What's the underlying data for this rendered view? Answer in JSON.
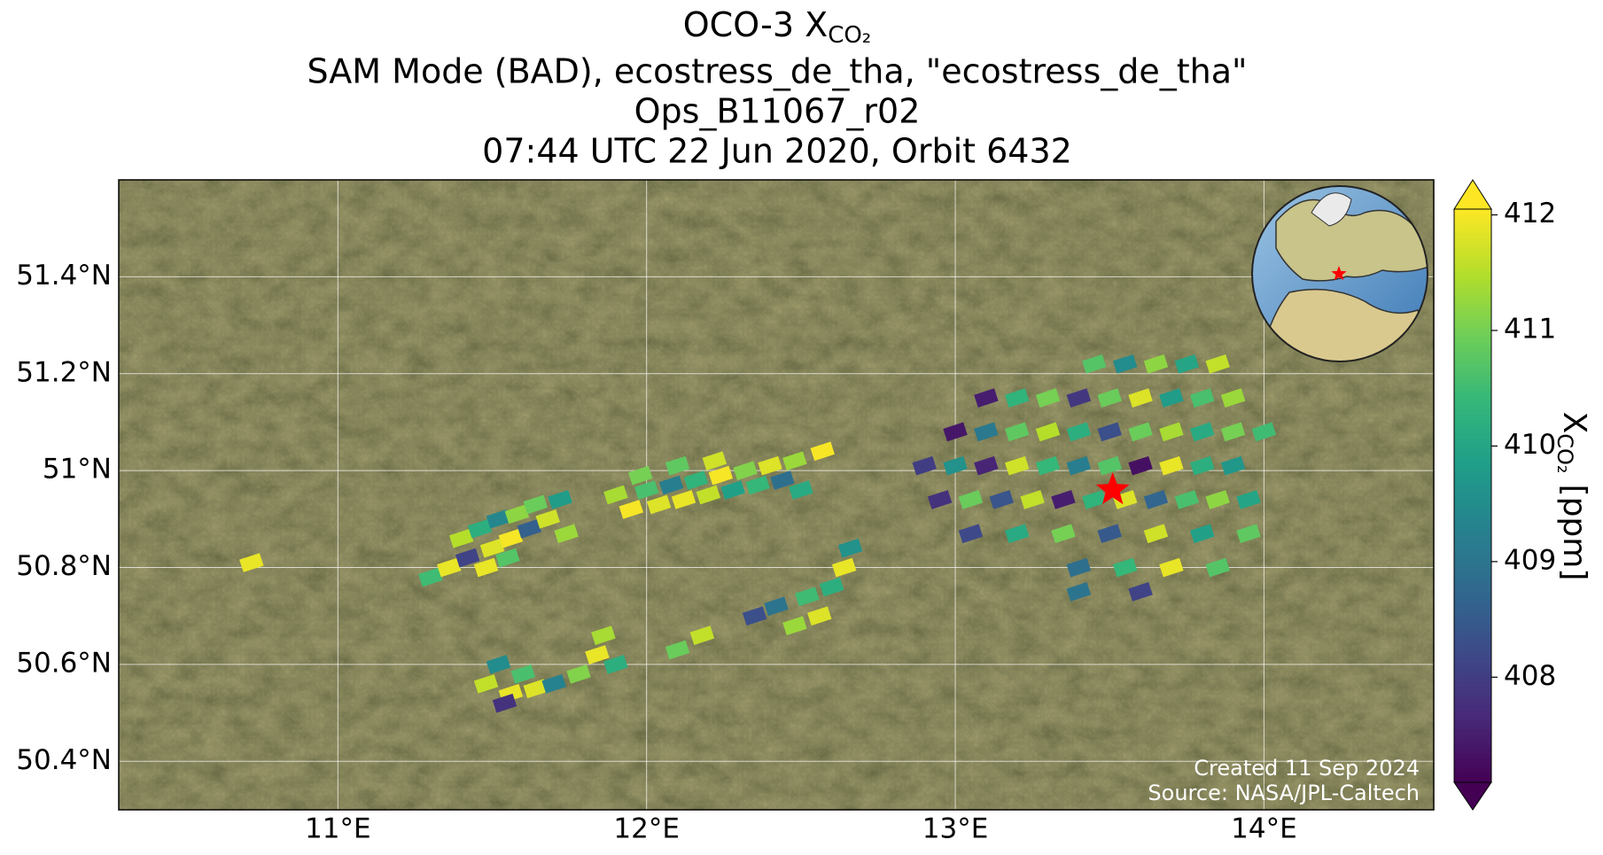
{
  "chart_data": {
    "type": "scatter",
    "title": {
      "text": "OCO-3 X",
      "subscript": "CO₂"
    },
    "subtitle": [
      "SAM Mode (BAD), ecostress_de_tha, \"ecostress_de_tha\"",
      "Ops_B11067_r02",
      "07:44 UTC 22 Jun 2020, Orbit 6432"
    ],
    "xlim": [
      10.29,
      14.55
    ],
    "ylim": [
      50.3,
      51.6
    ],
    "xticks": [
      {
        "value": 11,
        "label": "11°E"
      },
      {
        "value": 12,
        "label": "12°E"
      },
      {
        "value": 13,
        "label": "13°E"
      },
      {
        "value": 14,
        "label": "14°E"
      }
    ],
    "yticks": [
      {
        "value": 50.4,
        "label": "50.4°N"
      },
      {
        "value": 50.6,
        "label": "50.6°N"
      },
      {
        "value": 50.8,
        "label": "50.8°N"
      },
      {
        "value": 51,
        "label": "51°N"
      },
      {
        "value": 51.2,
        "label": "51.2°N"
      },
      {
        "value": 51.4,
        "label": "51.4°N"
      }
    ],
    "grid": true,
    "colormap": "viridis",
    "clim": [
      407.09,
      412.05
    ],
    "colorbar_ticks": [
      408,
      409,
      410,
      411,
      412
    ],
    "colorbar_label": {
      "text": "X",
      "subscript": "CO₂",
      "unit": "[ppm]"
    },
    "site": {
      "lon": 13.51,
      "lat": 50.96,
      "color": "#ff0000"
    },
    "series": [
      {
        "x": [
          11.3,
          11.36,
          11.42,
          11.4,
          11.46,
          11.5,
          11.52,
          11.56,
          11.58,
          11.62,
          11.64,
          11.68,
          11.72,
          11.48,
          11.55,
          11.74,
          11.9,
          11.95,
          12.0,
          12.04,
          12.08,
          12.12,
          12.16,
          12.2,
          12.24,
          12.28,
          12.32,
          12.36,
          12.4,
          12.44,
          12.48,
          11.98,
          12.1,
          12.22,
          12.5,
          12.57,
          13.45,
          13.55,
          13.65,
          13.75,
          13.85,
          13.1,
          13.2,
          13.3,
          13.4,
          13.5,
          13.6,
          13.7,
          13.8,
          13.9,
          13.0,
          13.1,
          13.2,
          13.3,
          13.4,
          13.5,
          13.6,
          13.7,
          13.8,
          13.9,
          14.0,
          12.9,
          13.0,
          13.1,
          13.2,
          13.3,
          13.4,
          13.5,
          13.6,
          13.7,
          13.8,
          13.9,
          12.95,
          13.05,
          13.15,
          13.25,
          13.35,
          13.45,
          13.55,
          13.65,
          13.75,
          13.85,
          13.95,
          13.05,
          13.2,
          13.35,
          13.5,
          13.65,
          13.8,
          13.95,
          13.4,
          13.55,
          13.7,
          13.85,
          13.4,
          13.6,
          12.35,
          12.42,
          12.48,
          12.52,
          12.56,
          12.6,
          12.64,
          12.66,
          11.48,
          11.52,
          11.56,
          11.6,
          11.64,
          11.54,
          11.7,
          11.78,
          11.84,
          11.9,
          11.86,
          12.1,
          12.18,
          10.72
        ],
        "y": [
          50.78,
          50.8,
          50.82,
          50.86,
          50.88,
          50.84,
          50.9,
          50.86,
          50.91,
          50.88,
          50.93,
          50.9,
          50.94,
          50.8,
          50.82,
          50.87,
          50.95,
          50.92,
          50.96,
          50.93,
          50.97,
          50.94,
          50.98,
          50.95,
          50.99,
          50.96,
          51.0,
          50.97,
          51.01,
          50.98,
          51.02,
          50.99,
          51.01,
          51.02,
          50.96,
          51.04,
          51.22,
          51.22,
          51.22,
          51.22,
          51.22,
          51.15,
          51.15,
          51.15,
          51.15,
          51.15,
          51.15,
          51.15,
          51.15,
          51.15,
          51.08,
          51.08,
          51.08,
          51.08,
          51.08,
          51.08,
          51.08,
          51.08,
          51.08,
          51.08,
          51.08,
          51.01,
          51.01,
          51.01,
          51.01,
          51.01,
          51.01,
          51.01,
          51.01,
          51.01,
          51.01,
          51.01,
          50.94,
          50.94,
          50.94,
          50.94,
          50.94,
          50.94,
          50.94,
          50.94,
          50.94,
          50.94,
          50.94,
          50.87,
          50.87,
          50.87,
          50.87,
          50.87,
          50.87,
          50.87,
          50.8,
          50.8,
          50.8,
          50.8,
          50.75,
          50.75,
          50.7,
          50.72,
          50.68,
          50.74,
          50.7,
          50.76,
          50.8,
          50.84,
          50.56,
          50.6,
          50.54,
          50.58,
          50.55,
          50.52,
          50.56,
          50.58,
          50.62,
          50.6,
          50.66,
          50.63,
          50.66,
          50.81
        ],
        "values": [
          410.5,
          411.9,
          408.1,
          411.5,
          410.2,
          411.8,
          409.4,
          412.0,
          411.2,
          408.6,
          410.9,
          411.7,
          409.8,
          411.9,
          410.7,
          411.3,
          411.4,
          412.0,
          410.6,
          411.8,
          409.2,
          411.9,
          410.3,
          411.6,
          412.0,
          409.9,
          411.1,
          410.4,
          411.8,
          408.9,
          411.3,
          411.0,
          410.8,
          411.7,
          410.1,
          412.0,
          410.7,
          409.5,
          411.2,
          410.0,
          411.6,
          407.5,
          410.3,
          411.0,
          407.9,
          410.9,
          411.8,
          409.8,
          410.6,
          411.3,
          407.4,
          409.1,
          410.8,
          411.5,
          410.2,
          408.3,
          410.9,
          411.4,
          410.1,
          411.0,
          410.5,
          408.0,
          409.6,
          407.6,
          411.7,
          410.4,
          409.2,
          410.7,
          407.3,
          411.9,
          410.2,
          409.7,
          407.8,
          410.9,
          408.4,
          411.6,
          407.5,
          410.3,
          411.8,
          408.7,
          410.6,
          411.2,
          410.0,
          408.2,
          410.1,
          411.0,
          408.5,
          411.7,
          409.9,
          410.8,
          408.9,
          410.4,
          411.9,
          410.7,
          409.0,
          408.1,
          408.3,
          409.0,
          411.3,
          410.5,
          411.8,
          410.2,
          411.9,
          409.6,
          411.6,
          409.5,
          411.9,
          410.6,
          411.8,
          407.8,
          409.3,
          411.1,
          411.9,
          410.2,
          411.4,
          410.9,
          411.6,
          411.9
        ]
      }
    ],
    "footer": [
      "Created 11 Sep 2024",
      "Source: NASA/JPL-Caltech"
    ]
  }
}
